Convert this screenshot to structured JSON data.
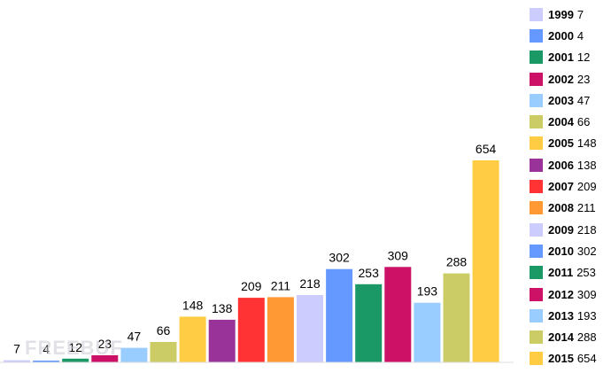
{
  "chart_data": {
    "type": "bar",
    "title": "",
    "xlabel": "",
    "ylabel": "",
    "ylim": [
      0,
      700
    ],
    "grid": false,
    "legend_position": "right",
    "categories": [
      "1999",
      "2000",
      "2001",
      "2002",
      "2003",
      "2004",
      "2005",
      "2006",
      "2007",
      "2008",
      "2009",
      "2010",
      "2011",
      "2012",
      "2013",
      "2014",
      "2015"
    ],
    "values": [
      7,
      4,
      12,
      23,
      47,
      66,
      148,
      138,
      209,
      211,
      218,
      302,
      253,
      309,
      193,
      288,
      654
    ],
    "colors": [
      "#ccccff",
      "#6699ff",
      "#1a9966",
      "#cc1166",
      "#99ccff",
      "#cccc66",
      "#ffcc44",
      "#993399",
      "#ff3333",
      "#ff9933",
      "#ccccff",
      "#6699ff",
      "#1a9966",
      "#cc1166",
      "#99ccff",
      "#cccc66",
      "#ffcc44"
    ]
  },
  "watermark": "FREEBUF"
}
